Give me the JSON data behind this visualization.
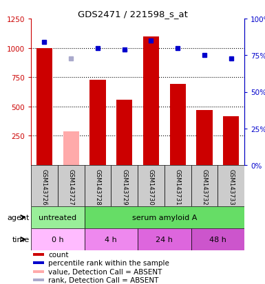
{
  "title": "GDS2471 / 221598_s_at",
  "samples": [
    "GSM143726",
    "GSM143727",
    "GSM143728",
    "GSM143729",
    "GSM143730",
    "GSM143731",
    "GSM143732",
    "GSM143733"
  ],
  "bar_values": [
    1000,
    290,
    730,
    555,
    1100,
    690,
    470,
    415
  ],
  "bar_absent": [
    false,
    true,
    false,
    false,
    false,
    false,
    false,
    false
  ],
  "rank_values": [
    84,
    73,
    80,
    79,
    85,
    80,
    75,
    73
  ],
  "rank_absent": [
    false,
    true,
    false,
    false,
    false,
    false,
    false,
    false
  ],
  "ylim_left": [
    0,
    1250
  ],
  "ylim_right": [
    0,
    100
  ],
  "yticks_left": [
    250,
    500,
    750,
    1000,
    1250
  ],
  "yticks_right": [
    0,
    25,
    50,
    75,
    100
  ],
  "bar_color": "#cc0000",
  "bar_absent_color": "#ffaaaa",
  "rank_color": "#0000cc",
  "rank_absent_color": "#aaaacc",
  "agent_labels": [
    {
      "text": "untreated",
      "start": 0,
      "end": 2,
      "color": "#99ee99"
    },
    {
      "text": "serum amyloid A",
      "start": 2,
      "end": 8,
      "color": "#66dd66"
    }
  ],
  "time_labels": [
    {
      "text": "0 h",
      "start": 0,
      "end": 2,
      "color": "#ffbbff"
    },
    {
      "text": "4 h",
      "start": 2,
      "end": 4,
      "color": "#ee88ee"
    },
    {
      "text": "24 h",
      "start": 4,
      "end": 6,
      "color": "#dd66dd"
    },
    {
      "text": "48 h",
      "start": 6,
      "end": 8,
      "color": "#cc55cc"
    }
  ],
  "legend_items": [
    {
      "color": "#cc0000",
      "label": "count"
    },
    {
      "color": "#0000cc",
      "label": "percentile rank within the sample"
    },
    {
      "color": "#ffaaaa",
      "label": "value, Detection Call = ABSENT"
    },
    {
      "color": "#aaaacc",
      "label": "rank, Detection Call = ABSENT"
    }
  ],
  "left_color": "#cc0000",
  "right_color": "#0000cc",
  "sample_bg_color": "#cccccc",
  "fig_width": 3.85,
  "fig_height": 4.14,
  "dpi": 100
}
